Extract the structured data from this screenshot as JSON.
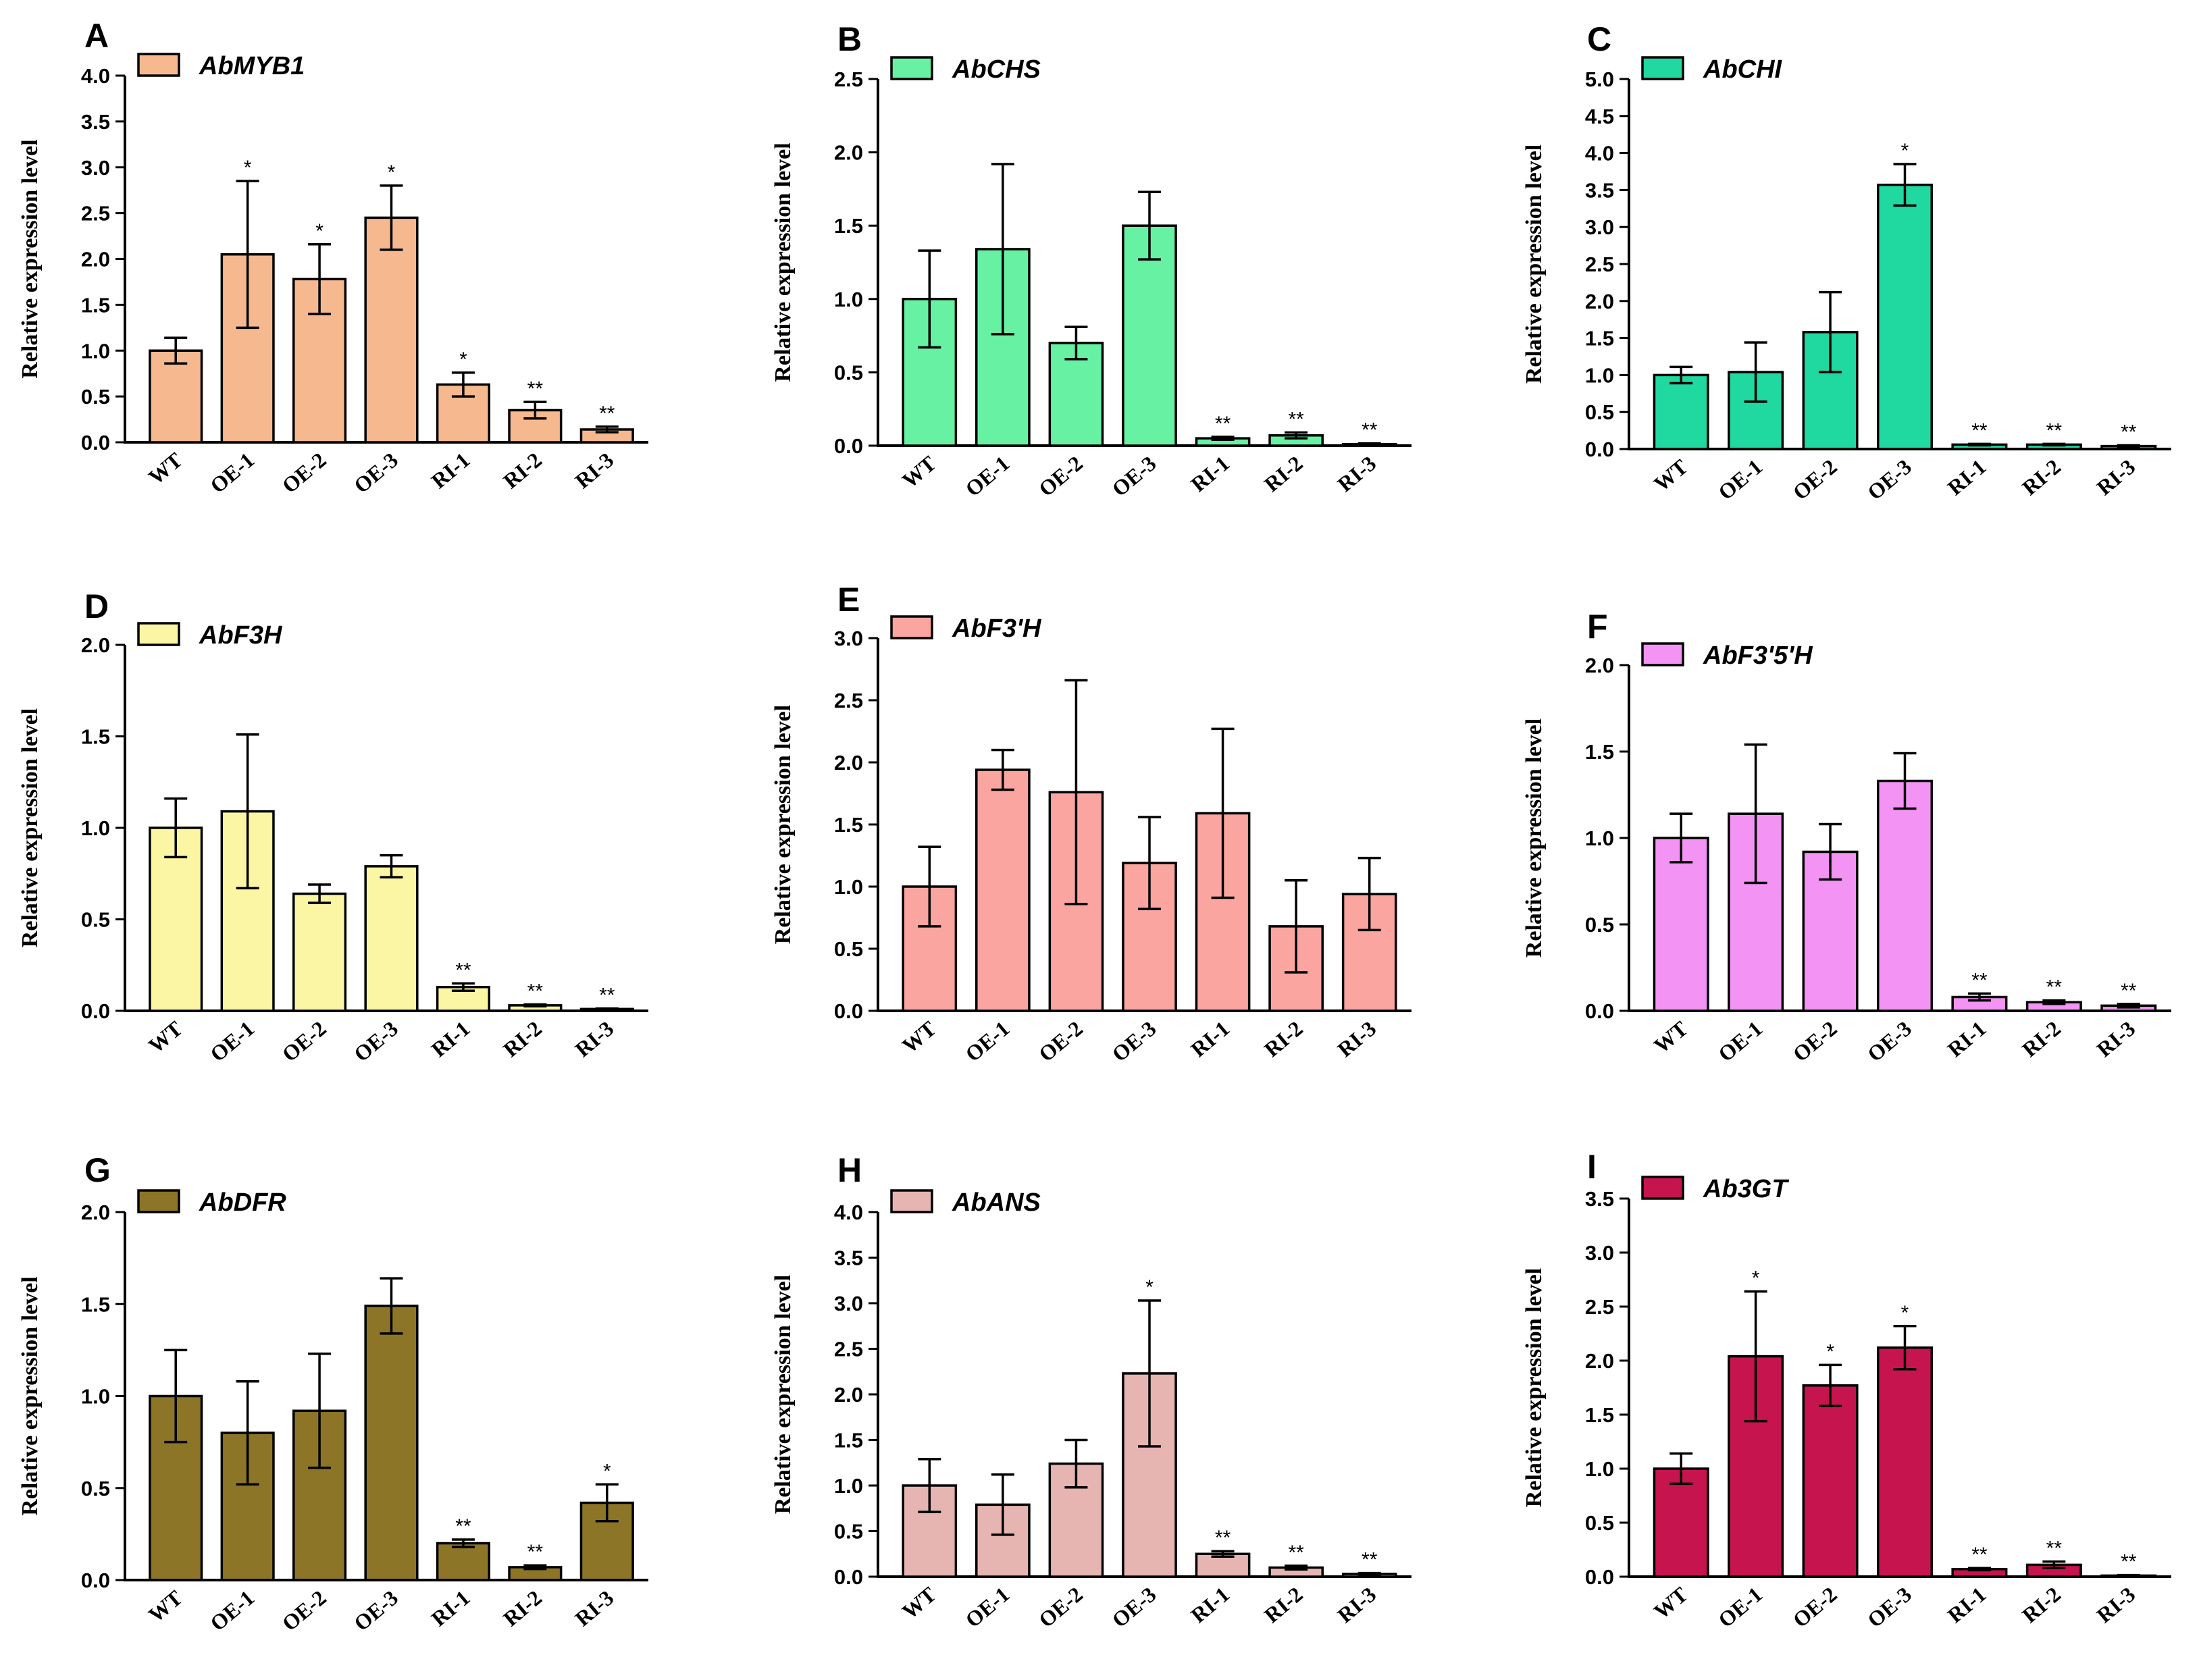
{
  "figure": {
    "ylabel": "Relative expression level"
  },
  "chart_data": [
    {
      "type": "bar",
      "panel": "A",
      "title": "AbMYB1",
      "color": "#f6b88f",
      "ylabel": "Relative expression level",
      "categories": [
        "WT",
        "OE-1",
        "OE-2",
        "OE-3",
        "RI-1",
        "RI-2",
        "RI-3"
      ],
      "values": [
        1.0,
        2.05,
        1.78,
        2.45,
        0.63,
        0.35,
        0.14
      ],
      "errors": [
        0.14,
        0.8,
        0.38,
        0.35,
        0.13,
        0.09,
        0.03
      ],
      "significance": [
        "",
        "*",
        "*",
        "*",
        "*",
        "**",
        "**"
      ],
      "ylim": [
        0,
        4.0
      ],
      "ytick_step": 0.5,
      "yticks": [
        "0.0",
        "0.5",
        "1.0",
        "1.5",
        "2.0",
        "2.5",
        "3.0",
        "3.5",
        "4.0"
      ]
    },
    {
      "type": "bar",
      "panel": "B",
      "title": "AbCHS",
      "color": "#66f2a2",
      "ylabel": "Relative expression level",
      "categories": [
        "WT",
        "OE-1",
        "OE-2",
        "OE-3",
        "RI-1",
        "RI-2",
        "RI-3"
      ],
      "values": [
        1.0,
        1.34,
        0.7,
        1.5,
        0.05,
        0.07,
        0.01
      ],
      "errors": [
        0.33,
        0.58,
        0.11,
        0.23,
        0.01,
        0.02,
        0.005
      ],
      "significance": [
        "",
        "",
        "",
        "",
        "**",
        "**",
        "**"
      ],
      "ylim": [
        0,
        2.5
      ],
      "ytick_step": 0.5,
      "yticks": [
        "0.0",
        "0.5",
        "1.0",
        "1.5",
        "2.0",
        "2.5"
      ]
    },
    {
      "type": "bar",
      "panel": "C",
      "title": "AbCHI",
      "color": "#1fd9a0",
      "ylabel": "Relative expression level",
      "categories": [
        "WT",
        "OE-1",
        "OE-2",
        "OE-3",
        "RI-1",
        "RI-2",
        "RI-3"
      ],
      "values": [
        1.0,
        1.04,
        1.58,
        3.57,
        0.06,
        0.06,
        0.04
      ],
      "errors": [
        0.11,
        0.4,
        0.54,
        0.28,
        0.01,
        0.01,
        0.01
      ],
      "significance": [
        "",
        "",
        "",
        "*",
        "**",
        "**",
        "**"
      ],
      "ylim": [
        0,
        5.0
      ],
      "ytick_step": 0.5,
      "yticks": [
        "0.0",
        "0.5",
        "1.0",
        "1.5",
        "2.0",
        "2.5",
        "3.0",
        "3.5",
        "4.0",
        "4.5",
        "5.0"
      ]
    },
    {
      "type": "bar",
      "panel": "D",
      "title": "AbF3H",
      "color": "#fbf6a3",
      "ylabel": "Relative expression level",
      "categories": [
        "WT",
        "OE-1",
        "OE-2",
        "OE-3",
        "RI-1",
        "RI-2",
        "RI-3"
      ],
      "values": [
        1.0,
        1.09,
        0.64,
        0.79,
        0.13,
        0.03,
        0.01
      ],
      "errors": [
        0.16,
        0.42,
        0.05,
        0.06,
        0.02,
        0.005,
        0.003
      ],
      "significance": [
        "",
        "",
        "",
        "",
        "**",
        "**",
        "**"
      ],
      "ylim": [
        0,
        2.0
      ],
      "ytick_step": 0.5,
      "yticks": [
        "0.0",
        "0.5",
        "1.0",
        "1.5",
        "2.0"
      ]
    },
    {
      "type": "bar",
      "panel": "E",
      "title": "AbF3'H",
      "color": "#fba5a0",
      "ylabel": "Relative expression level",
      "categories": [
        "WT",
        "OE-1",
        "OE-2",
        "OE-3",
        "RI-1",
        "RI-2",
        "RI-3"
      ],
      "values": [
        1.0,
        1.94,
        1.76,
        1.19,
        1.59,
        0.68,
        0.94
      ],
      "errors": [
        0.32,
        0.16,
        0.9,
        0.37,
        0.68,
        0.37,
        0.29
      ],
      "significance": [
        "",
        "",
        "",
        "",
        "",
        "",
        ""
      ],
      "ylim": [
        0,
        3.0
      ],
      "ytick_step": 0.5,
      "yticks": [
        "0.0",
        "0.5",
        "1.0",
        "1.5",
        "2.0",
        "2.5",
        "3.0"
      ]
    },
    {
      "type": "bar",
      "panel": "F",
      "title": "AbF3'5'H",
      "color": "#f393f3",
      "ylabel": "Relative expression level",
      "categories": [
        "WT",
        "OE-1",
        "OE-2",
        "OE-3",
        "RI-1",
        "RI-2",
        "RI-3"
      ],
      "values": [
        1.0,
        1.14,
        0.92,
        1.33,
        0.08,
        0.05,
        0.03
      ],
      "errors": [
        0.14,
        0.4,
        0.16,
        0.16,
        0.02,
        0.01,
        0.01
      ],
      "significance": [
        "",
        "",
        "",
        "",
        "**",
        "**",
        "**"
      ],
      "ylim": [
        0,
        2.0
      ],
      "ytick_step": 0.5,
      "yticks": [
        "0.0",
        "0.5",
        "1.0",
        "1.5",
        "2.0"
      ]
    },
    {
      "type": "bar",
      "panel": "G",
      "title": "AbDFR",
      "color": "#8c7526",
      "ylabel": "Relative expression level",
      "categories": [
        "WT",
        "OE-1",
        "OE-2",
        "OE-3",
        "RI-1",
        "RI-2",
        "RI-3"
      ],
      "values": [
        1.0,
        0.8,
        0.92,
        1.49,
        0.2,
        0.07,
        0.42
      ],
      "errors": [
        0.25,
        0.28,
        0.31,
        0.15,
        0.02,
        0.01,
        0.1
      ],
      "significance": [
        "",
        "",
        "",
        "",
        "**",
        "**",
        "*"
      ],
      "ylim": [
        0,
        2.0
      ],
      "ytick_step": 0.5,
      "yticks": [
        "0.0",
        "0.5",
        "1.0",
        "1.5",
        "2.0"
      ]
    },
    {
      "type": "bar",
      "panel": "H",
      "title": "AbANS",
      "color": "#e6b5b2",
      "ylabel": "Relative expression level",
      "categories": [
        "WT",
        "OE-1",
        "OE-2",
        "OE-3",
        "RI-1",
        "RI-2",
        "RI-3"
      ],
      "values": [
        1.0,
        0.79,
        1.24,
        2.23,
        0.25,
        0.1,
        0.03
      ],
      "errors": [
        0.29,
        0.33,
        0.26,
        0.8,
        0.03,
        0.02,
        0.01
      ],
      "significance": [
        "",
        "",
        "",
        "*",
        "**",
        "**",
        "**"
      ],
      "ylim": [
        0,
        4.0
      ],
      "ytick_step": 0.5,
      "yticks": [
        "0.0",
        "0.5",
        "1.0",
        "1.5",
        "2.0",
        "2.5",
        "3.0",
        "3.5",
        "4.0"
      ]
    },
    {
      "type": "bar",
      "panel": "I",
      "title": "Ab3GT",
      "color": "#c6144f",
      "ylabel": "Relative expression level",
      "categories": [
        "WT",
        "OE-1",
        "OE-2",
        "OE-3",
        "RI-1",
        "RI-2",
        "RI-3"
      ],
      "values": [
        1.0,
        2.04,
        1.77,
        2.12,
        0.07,
        0.11,
        0.01
      ],
      "errors": [
        0.14,
        0.6,
        0.19,
        0.2,
        0.01,
        0.03,
        0.005
      ],
      "significance": [
        "",
        "*",
        "*",
        "*",
        "**",
        "**",
        "**"
      ],
      "ylim": [
        0,
        3.5
      ],
      "ytick_step": 0.5,
      "yticks": [
        "0.0",
        "0.5",
        "1.0",
        "1.5",
        "2.0",
        "2.5",
        "3.0",
        "3.5"
      ]
    }
  ]
}
